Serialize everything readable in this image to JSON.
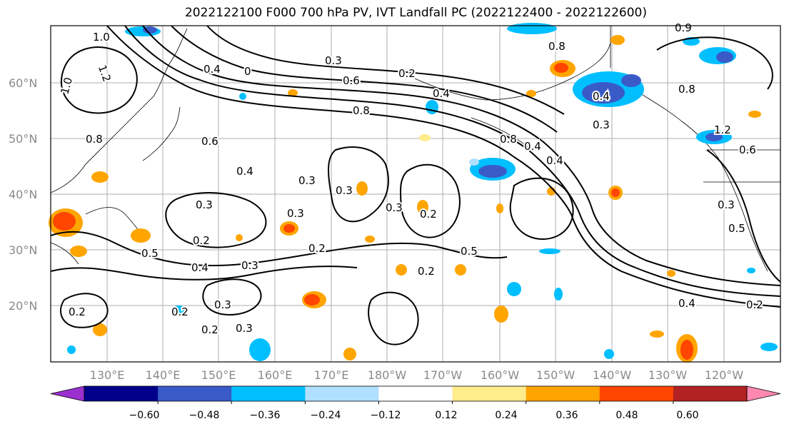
{
  "title": "2022122100 F000 700 hPa PV, IVT Landfall PC (2022122400 - 2022122600)",
  "lat_labels": [
    "60°N",
    "50°N",
    "40°N",
    "30°N",
    "20°N"
  ],
  "lon_labels": [
    "130°E",
    "140°E",
    "150°E",
    "160°E",
    "170°E",
    "180°W",
    "170°W",
    "160°W",
    "150°W",
    "140°W",
    "130°W",
    "120°W"
  ],
  "contour_labels": [
    "1.0",
    "1.2",
    "1.0",
    "0.4",
    "0",
    "0.3",
    "0.6",
    "0.2",
    "0.8",
    "0.4",
    "0.8",
    "0.9",
    "0.4",
    "0.3",
    "0.8",
    "0.6",
    "0.4",
    "0.3",
    "0.3",
    "0.4",
    "0.8",
    "0.4",
    "0.2",
    "0.3",
    "0.3",
    "0.2",
    "0.5",
    "0.4",
    "0.3",
    "0.2",
    "0.5",
    "0.3",
    "0.2",
    "0.2",
    "0.3",
    "0.2",
    "0.2",
    "0.3",
    "0.4",
    "0.2",
    "1.2",
    "0.6",
    "0.3",
    "0.5",
    "0.8"
  ],
  "colorbar": {
    "colors": [
      "#9b30d0",
      "#00008b",
      "#3a5bc7",
      "#00bfff",
      "#b0e0ff",
      "#ffffff",
      "#ffec8b",
      "#ffa500",
      "#ff4500",
      "#b22222",
      "#ff88b0"
    ],
    "tick_labels": [
      "−0.60",
      "−0.48",
      "−0.36",
      "−0.24",
      "−0.12",
      "0.12",
      "0.24",
      "0.36",
      "0.48",
      "0.60"
    ]
  }
}
